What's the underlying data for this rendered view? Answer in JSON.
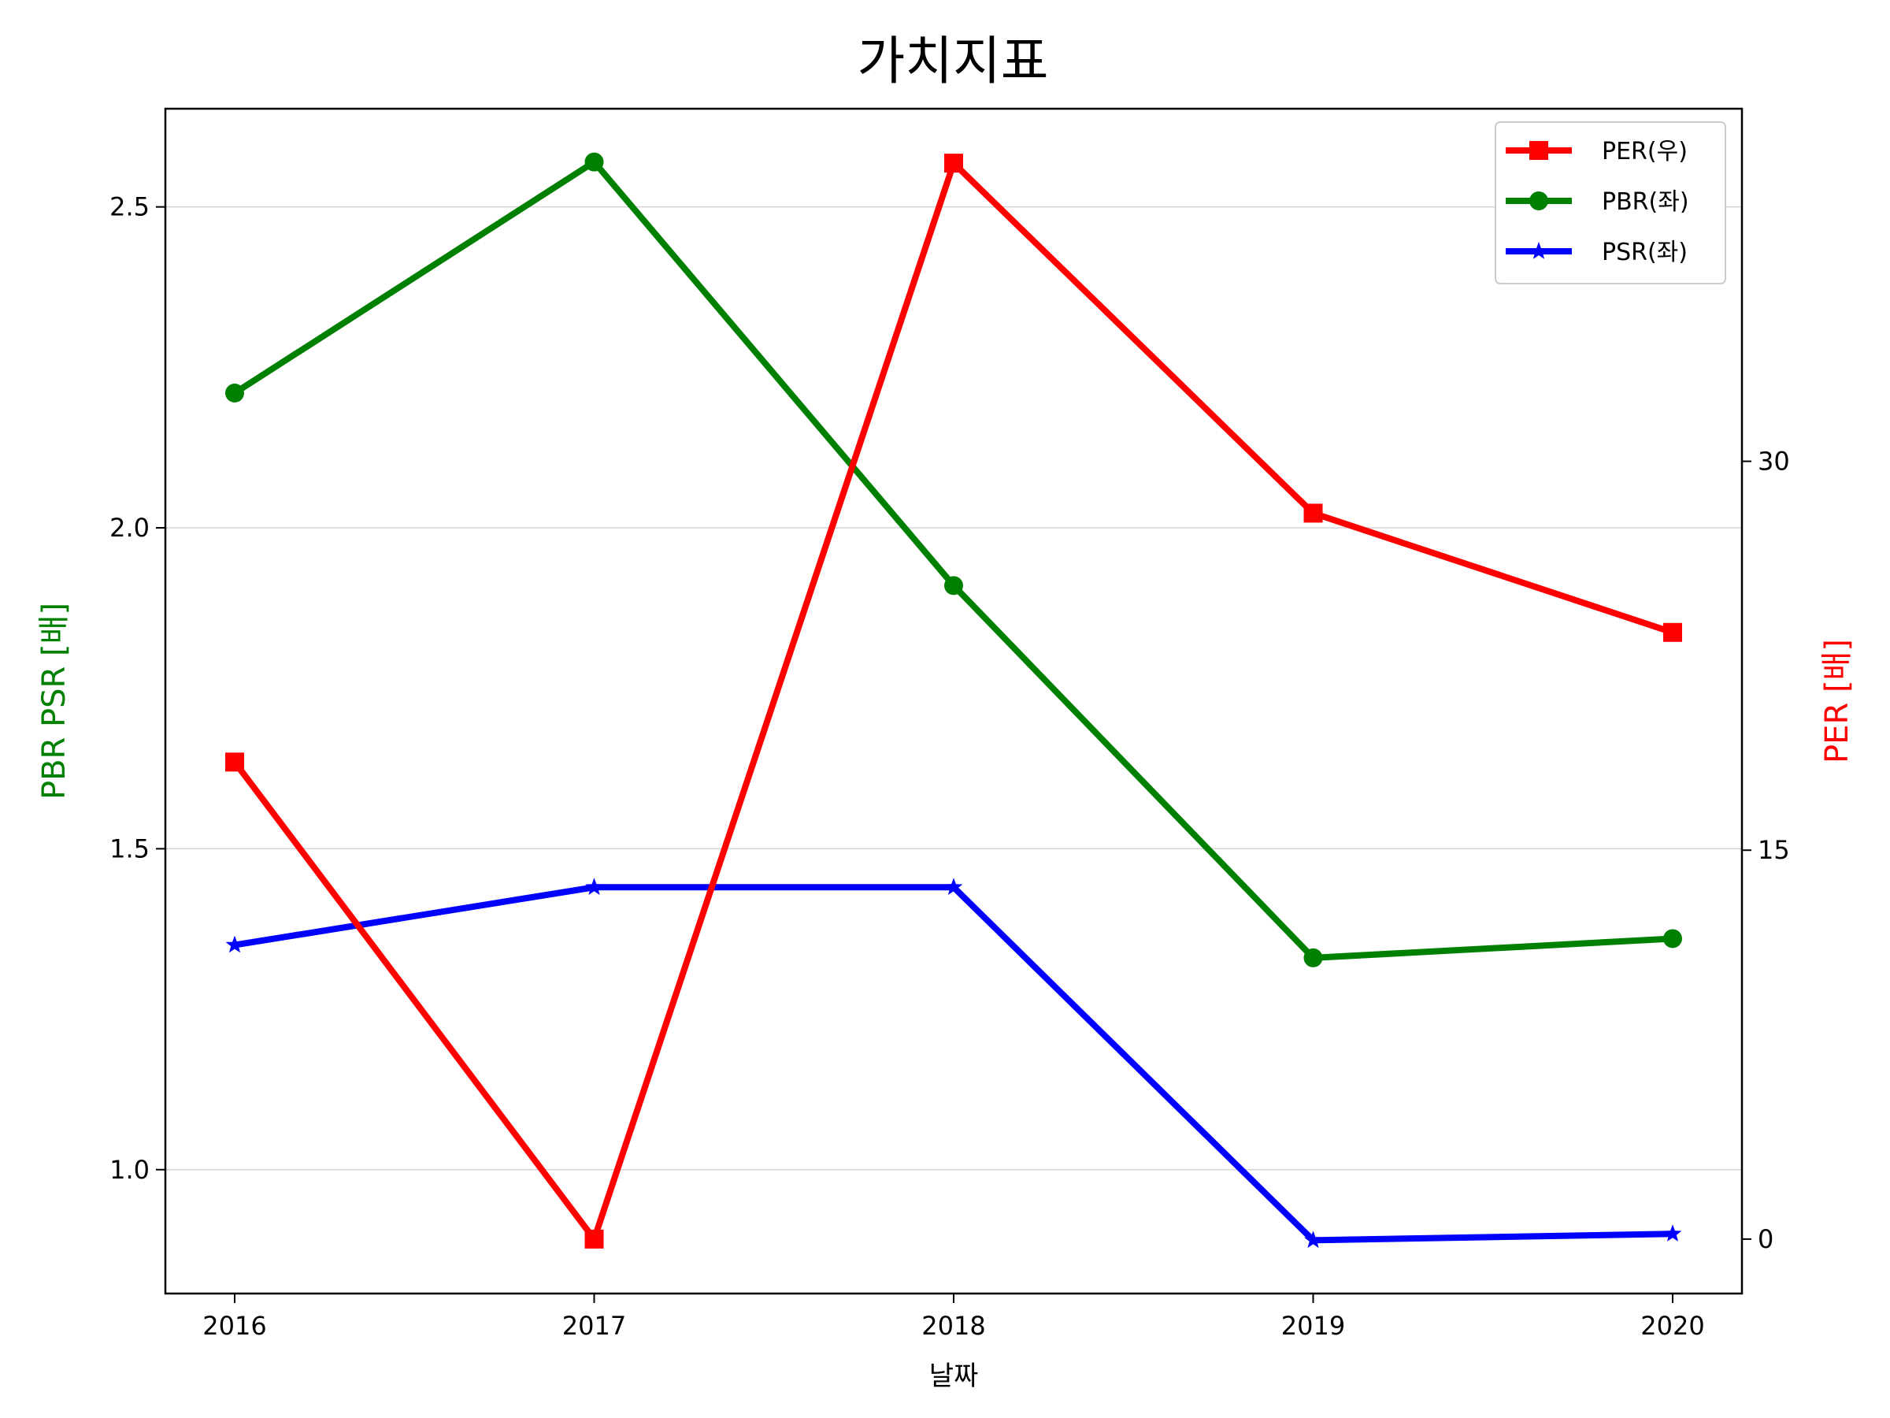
{
  "chart_data": {
    "type": "line",
    "title": "가치지표",
    "xlabel": "날짜",
    "ylabel_left": "PBR PSR [배]",
    "ylabel_right": "PER [배]",
    "x": [
      2016,
      2017,
      2018,
      2019,
      2020
    ],
    "x_tick_labels": [
      "2016",
      "2017",
      "2018",
      "2019",
      "2020"
    ],
    "y_left_ticks": [
      1.0,
      1.5,
      2.0,
      2.5
    ],
    "y_left_tick_labels": [
      "1.0",
      "1.5",
      "2.0",
      "2.5"
    ],
    "y_left_lim": [
      0.807,
      2.653
    ],
    "y_right_ticks": [
      0,
      15,
      30
    ],
    "y_right_tick_labels": [
      "0",
      "15",
      "30"
    ],
    "y_right_lim": [
      -2.1,
      43.6
    ],
    "grid": "horizontal (left axis)",
    "legend_position": "top-right",
    "series": [
      {
        "name": "PER(우)",
        "axis": "right",
        "color": "#ff0000",
        "marker": "square",
        "values": [
          18.4,
          0.0,
          41.5,
          28.0,
          23.4
        ]
      },
      {
        "name": "PBR(좌)",
        "axis": "left",
        "color": "#008000",
        "marker": "circle",
        "values": [
          2.21,
          2.57,
          1.91,
          1.33,
          1.36
        ]
      },
      {
        "name": "PSR(좌)",
        "axis": "left",
        "color": "#0000ff",
        "marker": "star",
        "values": [
          1.35,
          1.44,
          1.44,
          0.89,
          0.9
        ]
      }
    ],
    "colors": {
      "left_axis_label": "#008000",
      "right_axis_label": "#ff0000",
      "grid": "#d3d3d3"
    }
  }
}
